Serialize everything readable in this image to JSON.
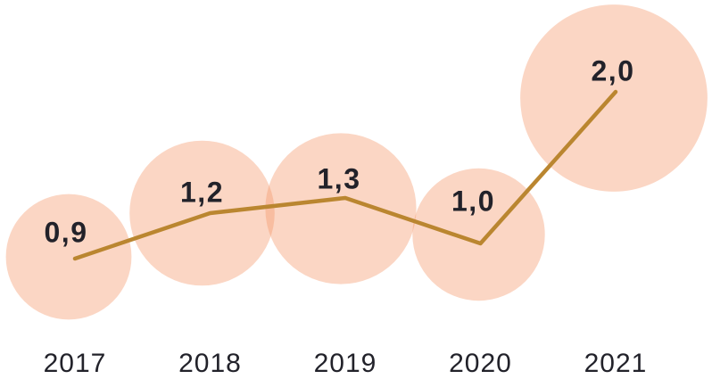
{
  "chart_data": {
    "type": "line",
    "title": "",
    "xlabel": "",
    "ylabel": "",
    "categories": [
      "2017",
      "2018",
      "2019",
      "2020",
      "2021"
    ],
    "values": [
      0.9,
      1.2,
      1.3,
      1.0,
      2.0
    ],
    "value_labels": [
      "0,9",
      "1,2",
      "1,3",
      "1,0",
      "2,0"
    ],
    "decimal_separator": ",",
    "series_style": "single line with translucent bubbles, bubble area proportional to value",
    "legend": "none",
    "grid": "off",
    "axes_visible": false,
    "ylim": [
      0,
      2.4
    ],
    "colors": {
      "background": "#FFFFFF",
      "line": "#BA8630",
      "bubble_fill": "rgba(246,152,107,0.40)",
      "text": "#22222A"
    }
  }
}
